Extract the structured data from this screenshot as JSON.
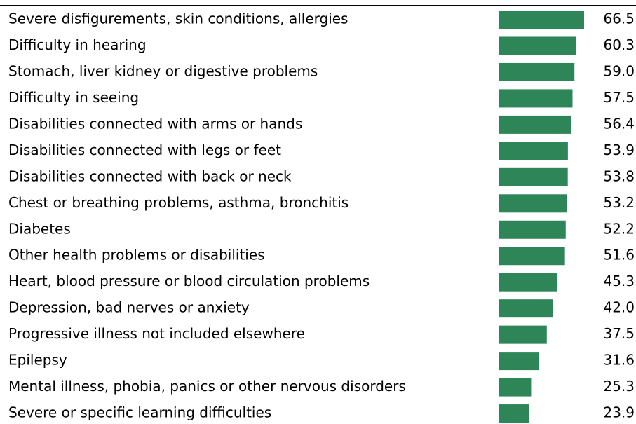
{
  "chart_data": {
    "type": "bar",
    "orientation": "horizontal",
    "categories": [
      "Severe disfigurements, skin conditions, allergies",
      "Difficulty in hearing",
      "Stomach, liver kidney or digestive problems",
      "Difficulty in seeing",
      "Disabilities connected with arms or hands",
      "Disabilities connected with legs or feet",
      "Disabilities connected with back or neck",
      "Chest or breathing problems, asthma, bronchitis",
      "Diabetes",
      "Other health problems or disabilities",
      "Heart, blood pressure or blood circulation problems",
      "Depression, bad nerves or anxiety",
      "Progressive illness not included elsewhere",
      "Epilepsy",
      "Mental illness, phobia, panics or other nervous disorders",
      "Severe or specific learning difficulties"
    ],
    "values": [
      66.5,
      60.3,
      59.0,
      57.5,
      56.4,
      53.9,
      53.8,
      53.2,
      52.2,
      51.6,
      45.3,
      42.0,
      37.5,
      31.6,
      25.3,
      23.9
    ],
    "value_labels": [
      "66.5",
      "60.3",
      "59.0",
      "57.5",
      "56.4",
      "53.9",
      "53.8",
      "53.2",
      "52.2",
      "51.6",
      "45.3",
      "42.0",
      "37.5",
      "31.6",
      "25.3",
      "23.9"
    ],
    "color": "#2e8557"
  }
}
